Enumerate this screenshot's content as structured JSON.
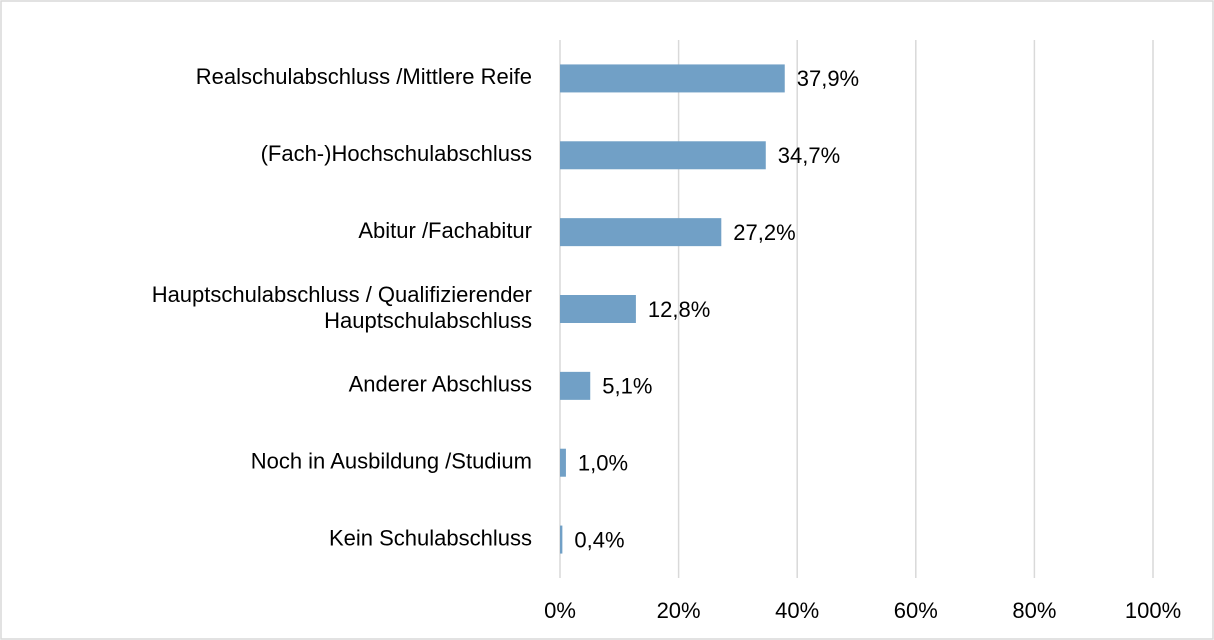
{
  "chart_data": {
    "type": "hbar",
    "categories": [
      "Realschulabschluss /Mittlere Reife",
      "(Fach-)Hochschulabschluss",
      "Abitur /Fachabitur",
      "Hauptschulabschluss / Qualifizierender Hauptschulabschluss",
      "Anderer Abschluss",
      "Noch in Ausbildung /Studium",
      "Kein Schulabschluss"
    ],
    "values": [
      37.9,
      34.7,
      27.2,
      12.8,
      5.1,
      1.0,
      0.4
    ],
    "value_labels": [
      "37,9%",
      "34,7%",
      "27,2%",
      "12,8%",
      "5,1%",
      "1,0%",
      "0,4%"
    ],
    "color": "#71a0c6",
    "xlim": [
      0,
      100
    ],
    "xticks": [
      {
        "value": 0,
        "label": "0%"
      },
      {
        "value": 20,
        "label": "20%"
      },
      {
        "value": 40,
        "label": "40%"
      },
      {
        "value": 60,
        "label": "60%"
      },
      {
        "value": 80,
        "label": "80%"
      },
      {
        "value": 100,
        "label": "100%"
      }
    ],
    "grid": true
  }
}
